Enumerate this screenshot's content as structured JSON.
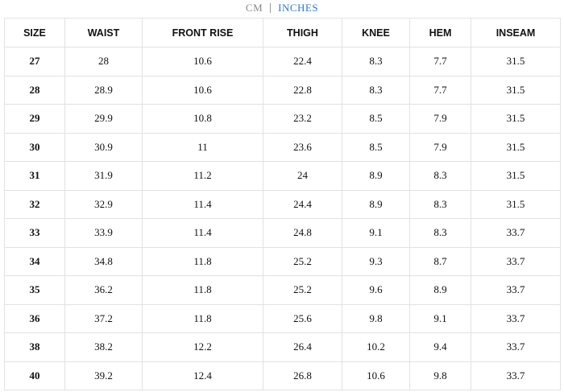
{
  "units": [
    "CM",
    "INCHES"
  ],
  "table": {
    "header": [
      "SIZE",
      "WAIST",
      "FRONT RISE",
      "THIGH",
      "KNEE",
      "HEM",
      "INSEAM"
    ],
    "rows": [
      [
        "27",
        "28",
        "10.6",
        "22.4",
        "8.3",
        "7.7",
        "31.5"
      ],
      [
        "28",
        "28.9",
        "10.6",
        "22.8",
        "8.3",
        "7.7",
        "31.5"
      ],
      [
        "29",
        "29.9",
        "10.8",
        "23.2",
        "8.5",
        "7.9",
        "31.5"
      ],
      [
        "30",
        "30.9",
        "11",
        "23.6",
        "8.5",
        "7.9",
        "31.5"
      ],
      [
        "31",
        "31.9",
        "11.2",
        "24",
        "8.9",
        "8.3",
        "31.5"
      ],
      [
        "32",
        "32.9",
        "11.4",
        "24.4",
        "8.9",
        "8.3",
        "31.5"
      ],
      [
        "33",
        "33.9",
        "11.4",
        "24.8",
        "9.1",
        "8.3",
        "33.7"
      ],
      [
        "34",
        "34.8",
        "11.8",
        "25.2",
        "9.3",
        "8.7",
        "33.7"
      ],
      [
        "35",
        "36.2",
        "11.8",
        "25.2",
        "9.6",
        "8.9",
        "33.7"
      ],
      [
        "36",
        "37.2",
        "11.8",
        "25.6",
        "9.8",
        "9.1",
        "33.7"
      ],
      [
        "38",
        "38.2",
        "12.2",
        "26.4",
        "10.2",
        "9.4",
        "33.7"
      ],
      [
        "40",
        "39.2",
        "12.4",
        "26.8",
        "10.6",
        "9.8",
        "33.7"
      ]
    ]
  }
}
